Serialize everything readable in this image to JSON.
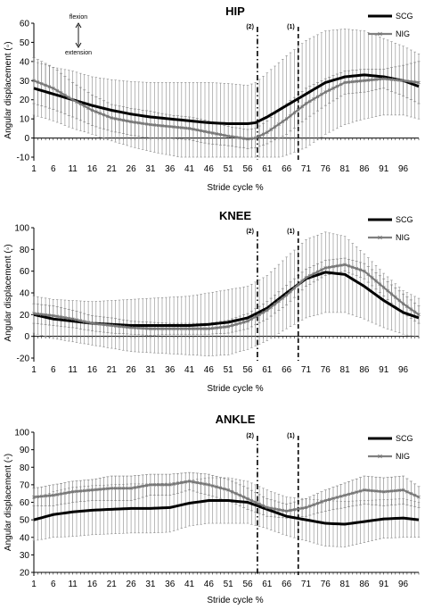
{
  "chart_data": [
    {
      "type": "line",
      "title": "HIP",
      "xlabel": "Stride cycle %",
      "ylabel": "Angular displacement (◦)",
      "ylim": [
        -10,
        60
      ],
      "yticks": [
        -10,
        0,
        10,
        20,
        30,
        40,
        50,
        60
      ],
      "categories": [
        "1",
        "6",
        "11",
        "16",
        "21",
        "26",
        "31",
        "36",
        "41",
        "46",
        "51",
        "56",
        "61",
        "66",
        "71",
        "76",
        "81",
        "86",
        "91",
        "96"
      ],
      "legend_position": "top-right",
      "direction_labels": [
        "flexion",
        "extension"
      ],
      "markers": [
        {
          "label": "(2)",
          "x": 58.5,
          "style": "dash-dot"
        },
        {
          "label": "(1)",
          "x": 69,
          "style": "dashed"
        }
      ],
      "series": [
        {
          "name": "SCG",
          "x": [
            1,
            6,
            11,
            16,
            21,
            26,
            31,
            36,
            41,
            46,
            51,
            56,
            58,
            61,
            66,
            71,
            76,
            81,
            86,
            91,
            96,
            100
          ],
          "values": [
            26,
            23,
            20,
            17,
            14.5,
            12.5,
            11,
            10,
            9,
            8,
            7.5,
            7.5,
            8,
            11,
            17,
            23,
            29,
            32,
            33,
            32,
            30,
            27
          ],
          "sd": [
            14,
            14,
            15,
            15,
            16,
            17,
            18,
            19,
            20,
            21,
            21,
            20,
            21,
            23,
            26,
            28,
            27,
            25,
            23,
            20,
            18,
            17
          ]
        },
        {
          "name": "NIG",
          "x": [
            1,
            6,
            11,
            16,
            21,
            26,
            31,
            36,
            41,
            46,
            51,
            56,
            58,
            61,
            66,
            71,
            76,
            81,
            86,
            91,
            96,
            100
          ],
          "values": [
            30,
            26,
            20,
            14.5,
            10.5,
            8.5,
            7,
            6,
            5,
            3,
            1,
            -0.5,
            0,
            3,
            10,
            18,
            24,
            29,
            30,
            31,
            30,
            29
          ],
          "sd": [
            12,
            11,
            9,
            8,
            7,
            7,
            7,
            6,
            6,
            6,
            5,
            5,
            5,
            6,
            8,
            8,
            7,
            6,
            6,
            5,
            8,
            11
          ]
        }
      ]
    },
    {
      "type": "line",
      "title": "KNEE",
      "xlabel": "Stride cycle %",
      "ylabel": "Angular displacement (◦)",
      "ylim": [
        -20,
        100
      ],
      "yticks": [
        -20,
        0,
        20,
        40,
        60,
        80,
        100
      ],
      "categories": [
        "1",
        "6",
        "11",
        "16",
        "21",
        "26",
        "31",
        "36",
        "41",
        "46",
        "51",
        "56",
        "61",
        "66",
        "71",
        "76",
        "81",
        "86",
        "91",
        "96"
      ],
      "legend_position": "top-right",
      "markers": [
        {
          "label": "(2)",
          "x": 58.5,
          "style": "dash-dot"
        },
        {
          "label": "(1)",
          "x": 69,
          "style": "dashed"
        }
      ],
      "series": [
        {
          "name": "SCG",
          "x": [
            1,
            6,
            11,
            16,
            21,
            26,
            31,
            36,
            41,
            46,
            51,
            56,
            61,
            66,
            71,
            76,
            81,
            86,
            91,
            96,
            100
          ],
          "values": [
            20,
            16,
            14,
            12,
            11,
            10,
            10,
            10,
            10,
            11,
            13,
            17,
            26,
            40,
            53,
            59,
            57,
            46,
            33,
            22,
            17
          ],
          "sd": [
            17,
            18,
            19,
            20,
            22,
            24,
            25,
            26,
            27,
            29,
            30,
            29,
            30,
            33,
            36,
            37,
            35,
            30,
            25,
            20,
            18
          ]
        },
        {
          "name": "NIG",
          "x": [
            1,
            6,
            11,
            16,
            21,
            26,
            31,
            36,
            41,
            46,
            51,
            56,
            61,
            66,
            71,
            76,
            81,
            86,
            91,
            96,
            100
          ],
          "values": [
            21,
            19,
            16,
            12,
            10,
            8,
            7,
            7,
            7,
            7,
            9,
            14,
            24,
            38,
            54,
            63,
            66,
            60,
            45,
            30,
            20
          ],
          "sd": [
            9,
            9,
            8,
            7,
            7,
            6,
            6,
            5,
            5,
            5,
            6,
            7,
            8,
            9,
            8,
            7,
            6,
            7,
            8,
            9,
            8
          ]
        }
      ]
    },
    {
      "type": "line",
      "title": "ANKLE",
      "xlabel": "Stride cycle %",
      "ylabel": "Angular displacement (◦)",
      "ylim": [
        20,
        100
      ],
      "yticks": [
        20,
        30,
        40,
        50,
        60,
        70,
        80,
        90,
        100
      ],
      "categories": [
        "1",
        "6",
        "11",
        "16",
        "21",
        "26",
        "31",
        "36",
        "41",
        "46",
        "51",
        "56",
        "61",
        "66",
        "71",
        "76",
        "81",
        "86",
        "91",
        "96"
      ],
      "legend_position": "top-right",
      "markers": [
        {
          "label": "(2)",
          "x": 58.5,
          "style": "dash-dot"
        },
        {
          "label": "(1)",
          "x": 69,
          "style": "dashed"
        }
      ],
      "series": [
        {
          "name": "SCG",
          "x": [
            1,
            6,
            11,
            16,
            21,
            26,
            31,
            36,
            41,
            46,
            51,
            56,
            61,
            66,
            71,
            76,
            81,
            86,
            91,
            96,
            100
          ],
          "values": [
            50,
            53,
            54.5,
            55.5,
            56,
            56.5,
            56.5,
            57,
            59.5,
            61,
            61,
            60,
            56,
            52,
            50,
            48,
            47.5,
            49,
            50.5,
            51,
            50
          ],
          "sd": [
            12,
            13,
            14,
            14,
            14,
            14,
            14,
            14,
            13,
            13,
            13,
            12,
            11,
            11,
            12,
            13,
            13,
            12,
            11,
            11,
            10
          ]
        },
        {
          "name": "NIG",
          "x": [
            1,
            6,
            11,
            16,
            21,
            26,
            31,
            36,
            41,
            46,
            51,
            56,
            61,
            66,
            71,
            76,
            81,
            86,
            91,
            96,
            100
          ],
          "values": [
            63,
            64,
            66,
            67,
            68,
            68,
            70,
            70,
            72,
            70,
            67,
            62,
            57,
            55,
            57,
            61,
            64,
            67,
            66,
            67,
            63
          ],
          "sd": [
            5,
            6,
            6,
            6,
            7,
            7,
            6,
            6,
            5,
            6,
            6,
            6,
            5,
            4,
            5,
            6,
            7,
            8,
            8,
            8,
            6
          ]
        }
      ]
    }
  ]
}
